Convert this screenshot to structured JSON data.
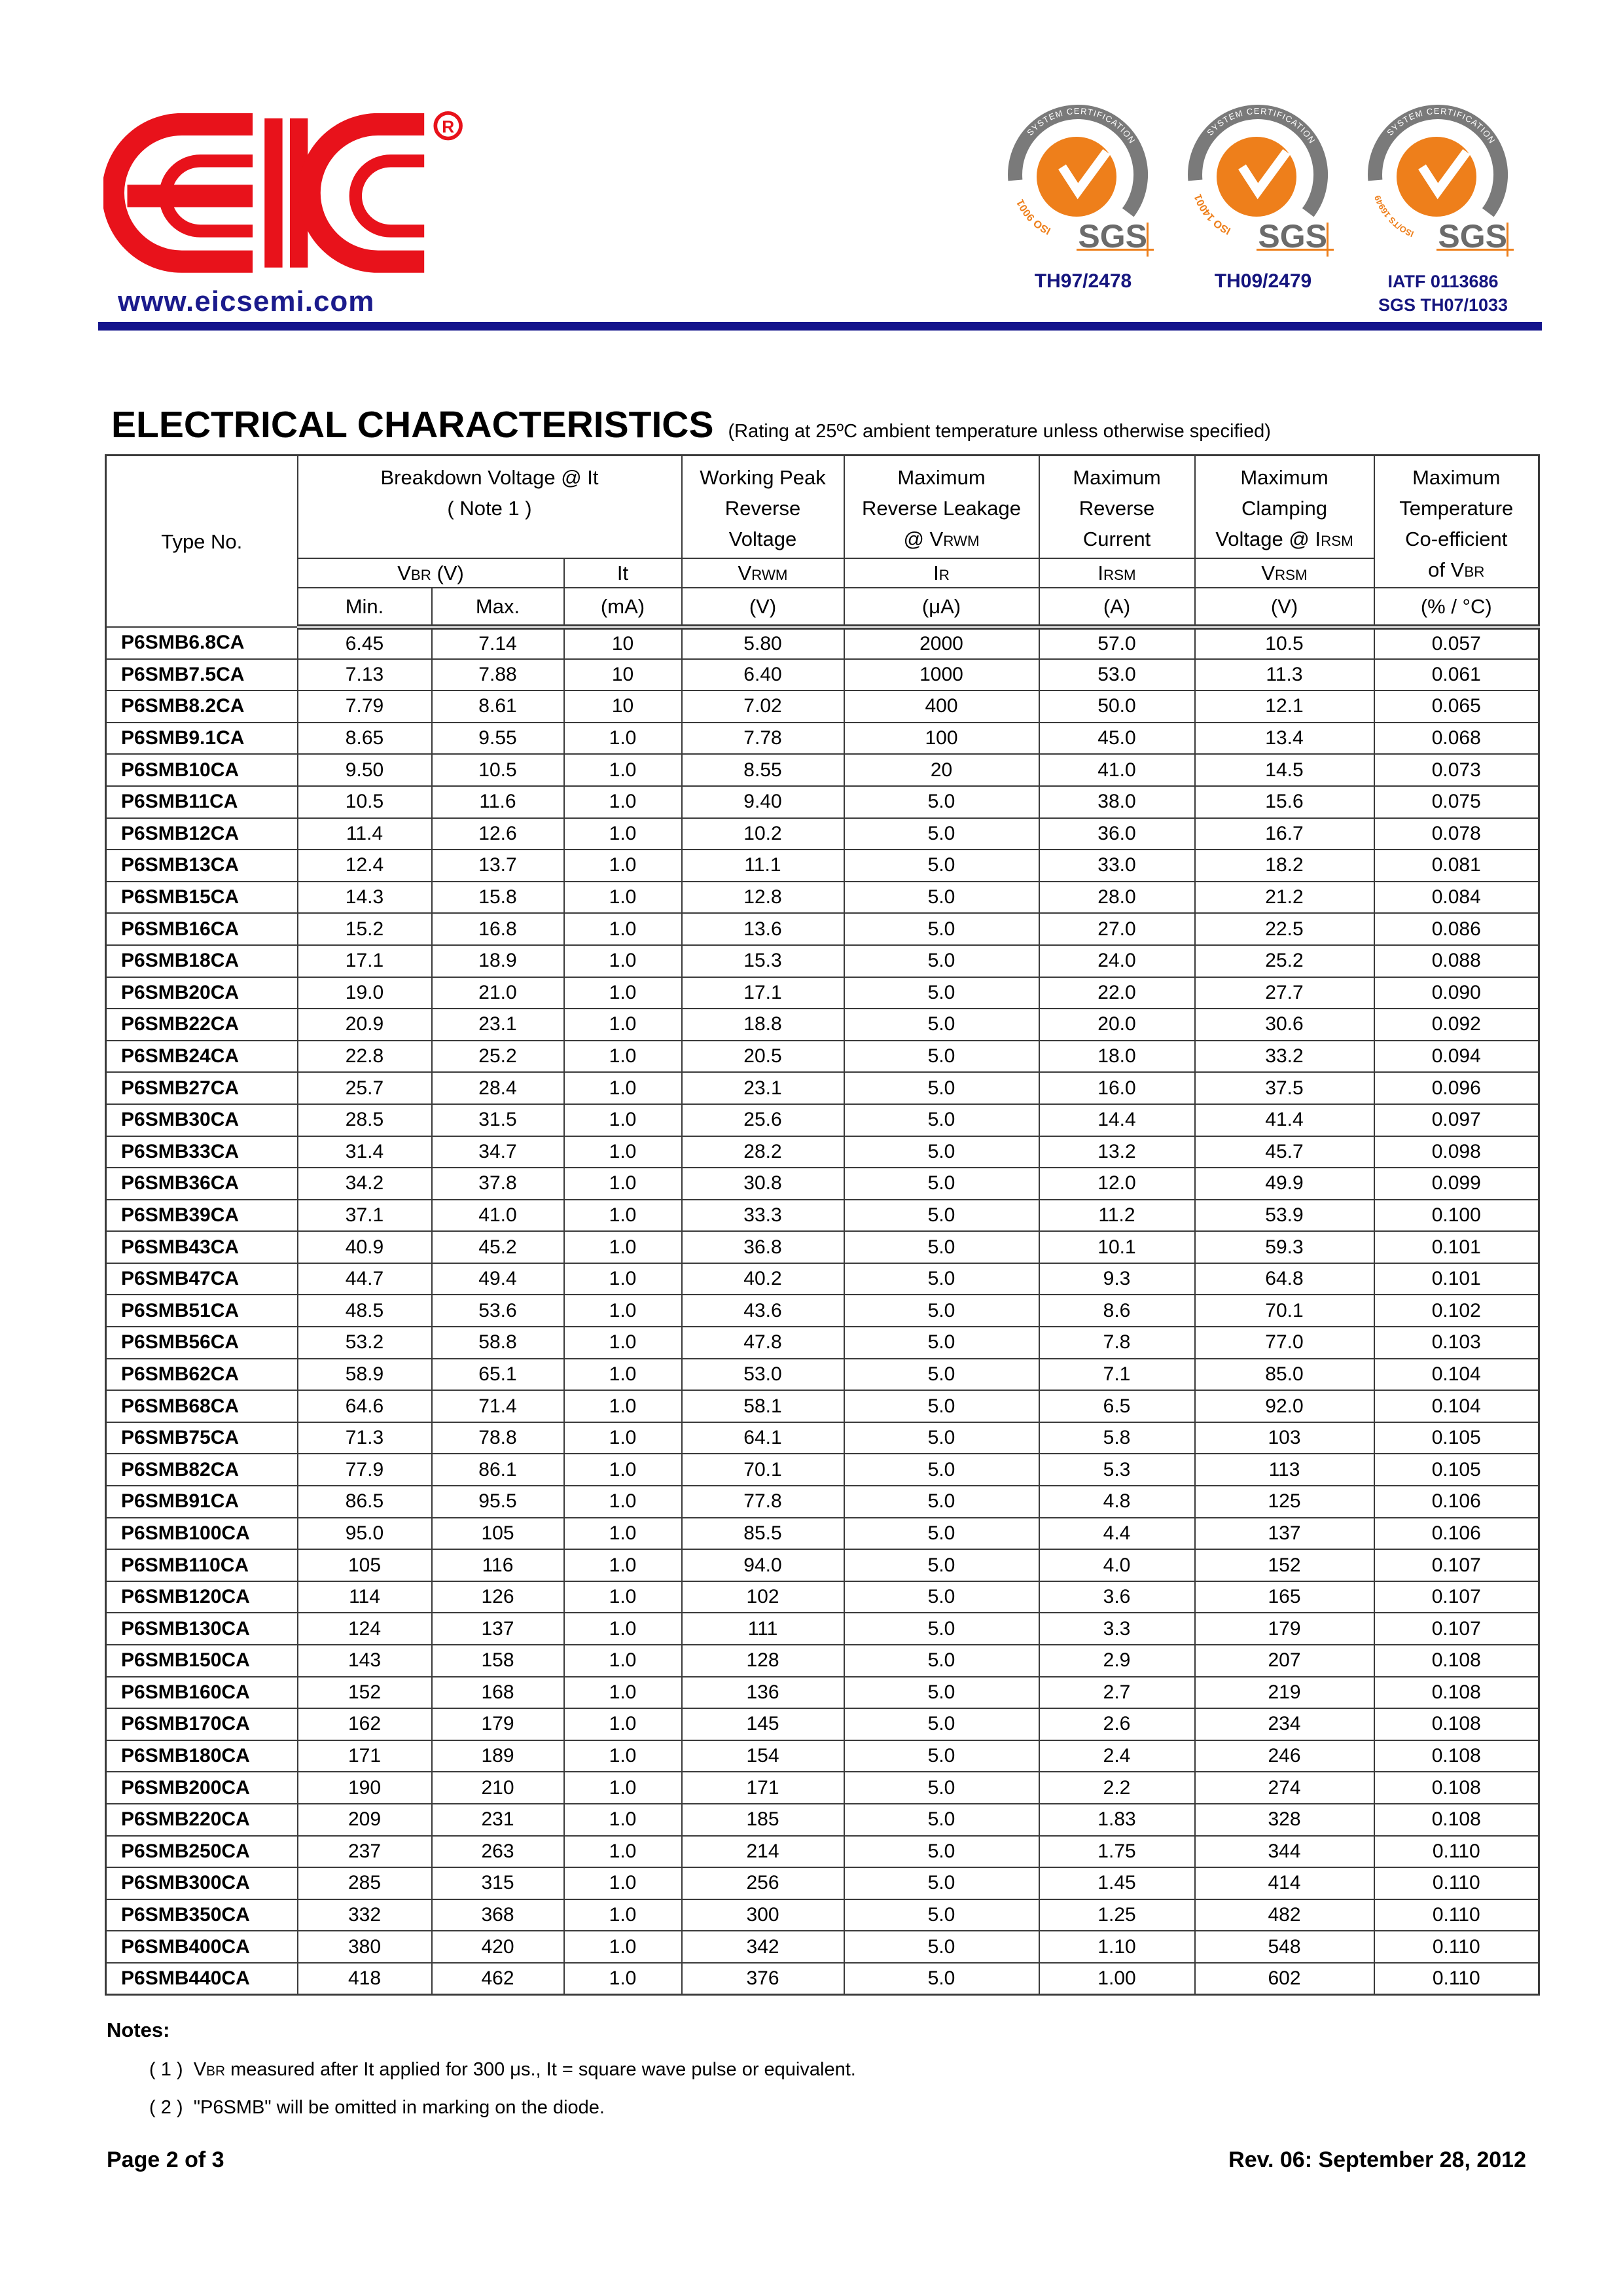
{
  "page": {
    "website": "www.eicsemi.com",
    "footer_left": "Page 2 of 3",
    "footer_right": "Rev. 06: September 28, 2012"
  },
  "logo": {
    "reg": "R"
  },
  "badges": {
    "arc_text": "SYSTEM CERTIFICATION",
    "sgs": "SGS",
    "items": [
      {
        "iso": "ISO 9001",
        "code": "TH97/2478"
      },
      {
        "iso": "ISO 14001",
        "code": "TH09/2479"
      },
      {
        "iso": "ISO/TS 16949",
        "code": "IATF 0113686",
        "code2": "SGS TH07/1033"
      }
    ]
  },
  "title": {
    "main": "ELECTRICAL CHARACTERISTICS",
    "note": "(Rating at 25ºC ambient temperature unless otherwise specified)"
  },
  "table": {
    "header": {
      "type_no": "Type No.",
      "breakdown": {
        "l1": "Breakdown Voltage @  It",
        "l2": "( Note 1 )"
      },
      "working_peak": [
        "Working Peak",
        "Reverse",
        "Voltage"
      ],
      "reverse_leakage": {
        "l1": "Maximum",
        "l2": "Reverse Leakage",
        "l3_pre": "@ V",
        "l3_sub": "RWM"
      },
      "reverse_current": [
        "Maximum",
        "Reverse",
        "Current"
      ],
      "clamping": {
        "l1": "Maximum",
        "l2": "Clamping",
        "l3_pre": "Voltage @ I",
        "l3_sub": "RSM"
      },
      "temp_coeff": {
        "l1": "Maximum",
        "l2": "Temperature",
        "l3": "Co-efficient",
        "l4_pre": "of V",
        "l4_sub": "BR"
      },
      "vbr_pre": "V",
      "vbr_sub": "BR",
      "vbr_unit": " (V)",
      "it": "It",
      "vrwm_pre": "V",
      "vrwm_sub": "RWM",
      "ir_pre": "I",
      "ir_sub": "R",
      "irsm_pre": "I",
      "irsm_sub": "RSM",
      "vrsm_pre": "V",
      "vrsm_sub": "RSM",
      "units": [
        "Min.",
        "Max.",
        "(mA)",
        "(V)",
        "(μA)",
        "(A)",
        "(V)",
        "(% / °C)"
      ]
    },
    "rows": [
      [
        "P6SMB6.8CA",
        "6.45",
        "7.14",
        "10",
        "5.80",
        "2000",
        "57.0",
        "10.5",
        "0.057"
      ],
      [
        "P6SMB7.5CA",
        "7.13",
        "7.88",
        "10",
        "6.40",
        "1000",
        "53.0",
        "11.3",
        "0.061"
      ],
      [
        "P6SMB8.2CA",
        "7.79",
        "8.61",
        "10",
        "7.02",
        "400",
        "50.0",
        "12.1",
        "0.065"
      ],
      [
        "P6SMB9.1CA",
        "8.65",
        "9.55",
        "1.0",
        "7.78",
        "100",
        "45.0",
        "13.4",
        "0.068"
      ],
      [
        "P6SMB10CA",
        "9.50",
        "10.5",
        "1.0",
        "8.55",
        "20",
        "41.0",
        "14.5",
        "0.073"
      ],
      [
        "P6SMB11CA",
        "10.5",
        "11.6",
        "1.0",
        "9.40",
        "5.0",
        "38.0",
        "15.6",
        "0.075"
      ],
      [
        "P6SMB12CA",
        "11.4",
        "12.6",
        "1.0",
        "10.2",
        "5.0",
        "36.0",
        "16.7",
        "0.078"
      ],
      [
        "P6SMB13CA",
        "12.4",
        "13.7",
        "1.0",
        "11.1",
        "5.0",
        "33.0",
        "18.2",
        "0.081"
      ],
      [
        "P6SMB15CA",
        "14.3",
        "15.8",
        "1.0",
        "12.8",
        "5.0",
        "28.0",
        "21.2",
        "0.084"
      ],
      [
        "P6SMB16CA",
        "15.2",
        "16.8",
        "1.0",
        "13.6",
        "5.0",
        "27.0",
        "22.5",
        "0.086"
      ],
      [
        "P6SMB18CA",
        "17.1",
        "18.9",
        "1.0",
        "15.3",
        "5.0",
        "24.0",
        "25.2",
        "0.088"
      ],
      [
        "P6SMB20CA",
        "19.0",
        "21.0",
        "1.0",
        "17.1",
        "5.0",
        "22.0",
        "27.7",
        "0.090"
      ],
      [
        "P6SMB22CA",
        "20.9",
        "23.1",
        "1.0",
        "18.8",
        "5.0",
        "20.0",
        "30.6",
        "0.092"
      ],
      [
        "P6SMB24CA",
        "22.8",
        "25.2",
        "1.0",
        "20.5",
        "5.0",
        "18.0",
        "33.2",
        "0.094"
      ],
      [
        "P6SMB27CA",
        "25.7",
        "28.4",
        "1.0",
        "23.1",
        "5.0",
        "16.0",
        "37.5",
        "0.096"
      ],
      [
        "P6SMB30CA",
        "28.5",
        "31.5",
        "1.0",
        "25.6",
        "5.0",
        "14.4",
        "41.4",
        "0.097"
      ],
      [
        "P6SMB33CA",
        "31.4",
        "34.7",
        "1.0",
        "28.2",
        "5.0",
        "13.2",
        "45.7",
        "0.098"
      ],
      [
        "P6SMB36CA",
        "34.2",
        "37.8",
        "1.0",
        "30.8",
        "5.0",
        "12.0",
        "49.9",
        "0.099"
      ],
      [
        "P6SMB39CA",
        "37.1",
        "41.0",
        "1.0",
        "33.3",
        "5.0",
        "11.2",
        "53.9",
        "0.100"
      ],
      [
        "P6SMB43CA",
        "40.9",
        "45.2",
        "1.0",
        "36.8",
        "5.0",
        "10.1",
        "59.3",
        "0.101"
      ],
      [
        "P6SMB47CA",
        "44.7",
        "49.4",
        "1.0",
        "40.2",
        "5.0",
        "9.3",
        "64.8",
        "0.101"
      ],
      [
        "P6SMB51CA",
        "48.5",
        "53.6",
        "1.0",
        "43.6",
        "5.0",
        "8.6",
        "70.1",
        "0.102"
      ],
      [
        "P6SMB56CA",
        "53.2",
        "58.8",
        "1.0",
        "47.8",
        "5.0",
        "7.8",
        "77.0",
        "0.103"
      ],
      [
        "P6SMB62CA",
        "58.9",
        "65.1",
        "1.0",
        "53.0",
        "5.0",
        "7.1",
        "85.0",
        "0.104"
      ],
      [
        "P6SMB68CA",
        "64.6",
        "71.4",
        "1.0",
        "58.1",
        "5.0",
        "6.5",
        "92.0",
        "0.104"
      ],
      [
        "P6SMB75CA",
        "71.3",
        "78.8",
        "1.0",
        "64.1",
        "5.0",
        "5.8",
        "103",
        "0.105"
      ],
      [
        "P6SMB82CA",
        "77.9",
        "86.1",
        "1.0",
        "70.1",
        "5.0",
        "5.3",
        "113",
        "0.105"
      ],
      [
        "P6SMB91CA",
        "86.5",
        "95.5",
        "1.0",
        "77.8",
        "5.0",
        "4.8",
        "125",
        "0.106"
      ],
      [
        "P6SMB100CA",
        "95.0",
        "105",
        "1.0",
        "85.5",
        "5.0",
        "4.4",
        "137",
        "0.106"
      ],
      [
        "P6SMB110CA",
        "105",
        "116",
        "1.0",
        "94.0",
        "5.0",
        "4.0",
        "152",
        "0.107"
      ],
      [
        "P6SMB120CA",
        "114",
        "126",
        "1.0",
        "102",
        "5.0",
        "3.6",
        "165",
        "0.107"
      ],
      [
        "P6SMB130CA",
        "124",
        "137",
        "1.0",
        "111",
        "5.0",
        "3.3",
        "179",
        "0.107"
      ],
      [
        "P6SMB150CA",
        "143",
        "158",
        "1.0",
        "128",
        "5.0",
        "2.9",
        "207",
        "0.108"
      ],
      [
        "P6SMB160CA",
        "152",
        "168",
        "1.0",
        "136",
        "5.0",
        "2.7",
        "219",
        "0.108"
      ],
      [
        "P6SMB170CA",
        "162",
        "179",
        "1.0",
        "145",
        "5.0",
        "2.6",
        "234",
        "0.108"
      ],
      [
        "P6SMB180CA",
        "171",
        "189",
        "1.0",
        "154",
        "5.0",
        "2.4",
        "246",
        "0.108"
      ],
      [
        "P6SMB200CA",
        "190",
        "210",
        "1.0",
        "171",
        "5.0",
        "2.2",
        "274",
        "0.108"
      ],
      [
        "P6SMB220CA",
        "209",
        "231",
        "1.0",
        "185",
        "5.0",
        "1.83",
        "328",
        "0.108"
      ],
      [
        "P6SMB250CA",
        "237",
        "263",
        "1.0",
        "214",
        "5.0",
        "1.75",
        "344",
        "0.110"
      ],
      [
        "P6SMB300CA",
        "285",
        "315",
        "1.0",
        "256",
        "5.0",
        "1.45",
        "414",
        "0.110"
      ],
      [
        "P6SMB350CA",
        "332",
        "368",
        "1.0",
        "300",
        "5.0",
        "1.25",
        "482",
        "0.110"
      ],
      [
        "P6SMB400CA",
        "380",
        "420",
        "1.0",
        "342",
        "5.0",
        "1.10",
        "548",
        "0.110"
      ],
      [
        "P6SMB440CA",
        "418",
        "462",
        "1.0",
        "376",
        "5.0",
        "1.00",
        "602",
        "0.110"
      ]
    ]
  },
  "notes": {
    "heading": "Notes:",
    "n1_label": "( 1 )",
    "n1_pre": "V",
    "n1_sub": "BR",
    "n1_rest": "measured after It applied for 300 μs., It = square wave pulse or equivalent.",
    "n2_label": "( 2 )",
    "n2_text": "\"P6SMB\" will be omitted in marking on the diode."
  }
}
